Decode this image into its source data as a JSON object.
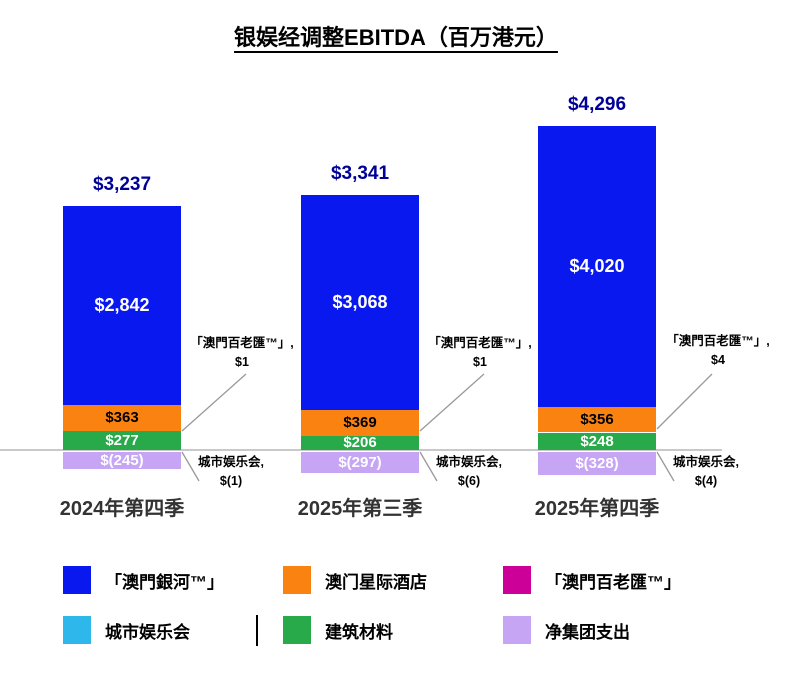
{
  "title": "银娱经调整EBITDA（百万港元）",
  "chart_data": {
    "type": "bar",
    "stacked": true,
    "title": "银娱经调整EBITDA（百万港元）",
    "unit": "百万港元",
    "grid": false,
    "legend_position": "bottom",
    "ylim": [
      -400,
      4700
    ],
    "categories": [
      "2024年第四季",
      "2025年第三季",
      "2025年第四季"
    ],
    "totals": [
      3237,
      3341,
      4296
    ],
    "total_labels": [
      "$3,237",
      "$3,341",
      "$4,296"
    ],
    "series": [
      {
        "key": "construction-materials",
        "name": "建筑材料",
        "color": "#28A94A",
        "label_color": "#ffffff",
        "values": [
          277,
          206,
          248
        ],
        "value_labels": [
          "$277",
          "$206",
          "$248"
        ]
      },
      {
        "key": "broadway-macau",
        "name": "「澳門百老匯™」",
        "color": "#CC0099",
        "label_color": "#ffffff",
        "values": [
          1,
          1,
          4
        ],
        "value_labels": null
      },
      {
        "key": "starworld-hotel",
        "name": "澳门星际酒店",
        "color": "#F98211",
        "label_color": "#000000",
        "values": [
          363,
          369,
          356
        ],
        "value_labels": [
          "$363",
          "$369",
          "$356"
        ]
      },
      {
        "key": "galaxy-macau",
        "name": "「澳門銀河™」",
        "color": "#0A18F0",
        "label_color": "#ffffff",
        "values": [
          2842,
          3068,
          4020
        ],
        "value_labels": [
          "$2,842",
          "$3,068",
          "$4,020"
        ]
      },
      {
        "key": "city-clubs",
        "name": "城市娱乐会",
        "color": "#2EB7EB",
        "label_color": "#000000",
        "values": [
          -1,
          -6,
          -4
        ],
        "value_labels": null
      },
      {
        "key": "net-group-expenditure",
        "name": "净集团支出",
        "color": "#C6A5F5",
        "label_color": "#ffffff",
        "values": [
          -245,
          -297,
          -328
        ],
        "value_labels": [
          "$(245)",
          "$(297)",
          "$(328)"
        ]
      }
    ]
  },
  "annotations": {
    "broadway": [
      {
        "line1": "「澳門百老匯™」,",
        "line2": "$1"
      },
      {
        "line1": "「澳門百老匯™」,",
        "line2": "$1"
      },
      {
        "line1": "「澳門百老匯™」,",
        "line2": "$4"
      }
    ],
    "city_clubs": [
      {
        "line1": "城市娱乐会,",
        "line2": "$(1)"
      },
      {
        "line1": "城市娱乐会,",
        "line2": "$(6)"
      },
      {
        "line1": "城市娱乐会,",
        "line2": "$(4)"
      }
    ]
  },
  "legend": {
    "divider": "|"
  }
}
